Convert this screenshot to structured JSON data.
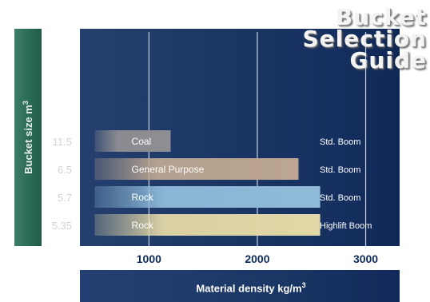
{
  "title": [
    "Bucket",
    "Selection",
    "Guide"
  ],
  "chart_data": {
    "type": "bar",
    "orientation": "horizontal",
    "title": "Bucket Selection Guide",
    "xlabel": "Material density kg/m",
    "xlabel_sup": "3",
    "ylabel": "Bucket size m",
    "ylabel_sup": "3",
    "xlim": [
      400,
      3350
    ],
    "xticks": [
      1000,
      2000,
      3000
    ],
    "xtick_labels": [
      "1000",
      "2000",
      "3000"
    ],
    "grid": "vertical lines at ticks",
    "bars": [
      {
        "size": "11.5",
        "label": "Coal",
        "start": 500,
        "end": 1200,
        "boom": "Std. Boom",
        "color": "#8f8e92"
      },
      {
        "size": "6.5",
        "label": "General Purpose",
        "start": 500,
        "end": 2380,
        "boom": "Std. Boom",
        "color": "#bca692"
      },
      {
        "size": "5.7",
        "label": "Rock",
        "start": 500,
        "end": 2580,
        "boom": "Std. Boom",
        "color": "#8fbbd9"
      },
      {
        "size": "5.35",
        "label": "Rock",
        "start": 500,
        "end": 2580,
        "boom": "Highlift Boom",
        "color": "#e2d7a6"
      }
    ]
  }
}
